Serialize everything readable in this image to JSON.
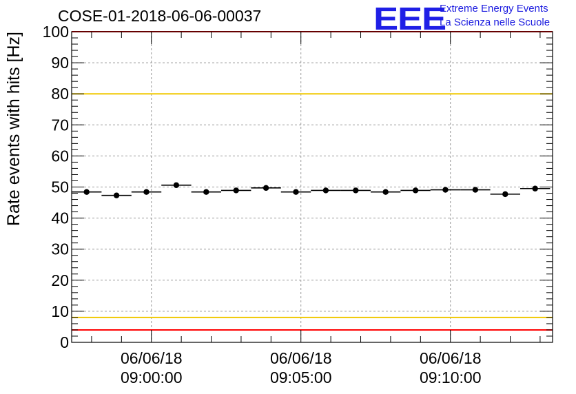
{
  "header": {
    "title": "COSE-01-2018-06-06-00037",
    "logo_mark": "EEE",
    "logo_line1": "Extreme Energy Events",
    "logo_line2": "La Scienza nelle Scuole"
  },
  "colors": {
    "limit_red": "#ff0000",
    "limit_yellow": "#f0c800",
    "grid": "#999999",
    "marker": "#000000",
    "logo": "#1a1adf"
  },
  "chart_data": {
    "type": "scatter",
    "title": "COSE-01-2018-06-06-00037",
    "xlabel": "",
    "ylabel": "Rate events with hits [Hz]",
    "ylim": [
      0,
      100
    ],
    "yticks": [
      0,
      10,
      20,
      30,
      40,
      50,
      60,
      70,
      80,
      90,
      100
    ],
    "xlim": [
      "06/06/18 08:57:20",
      "06/06/18 09:13:25"
    ],
    "xticks": [
      {
        "date": "06/06/18",
        "time": "09:00:00"
      },
      {
        "date": "06/06/18",
        "time": "09:05:00"
      },
      {
        "date": "06/06/18",
        "time": "09:10:00"
      }
    ],
    "grid": true,
    "reference_lines": [
      {
        "y": 100,
        "color": "red"
      },
      {
        "y": 80,
        "color": "yellow"
      },
      {
        "y": 8,
        "color": "yellow"
      },
      {
        "y": 4,
        "color": "red"
      }
    ],
    "bin_width_seconds": 60,
    "series": [
      {
        "x": [
          "08:57:50",
          "08:58:50",
          "08:59:50",
          "09:00:50",
          "09:01:50",
          "09:02:50",
          "09:03:50",
          "09:04:50",
          "09:05:50",
          "09:06:50",
          "09:07:50",
          "09:08:50",
          "09:09:50",
          "09:10:50",
          "09:11:50",
          "09:12:50"
        ],
        "y": [
          48.4,
          47.3,
          48.4,
          50.6,
          48.4,
          48.9,
          49.7,
          48.4,
          48.9,
          48.9,
          48.4,
          48.9,
          49.1,
          49.1,
          47.7,
          49.5
        ]
      }
    ]
  }
}
